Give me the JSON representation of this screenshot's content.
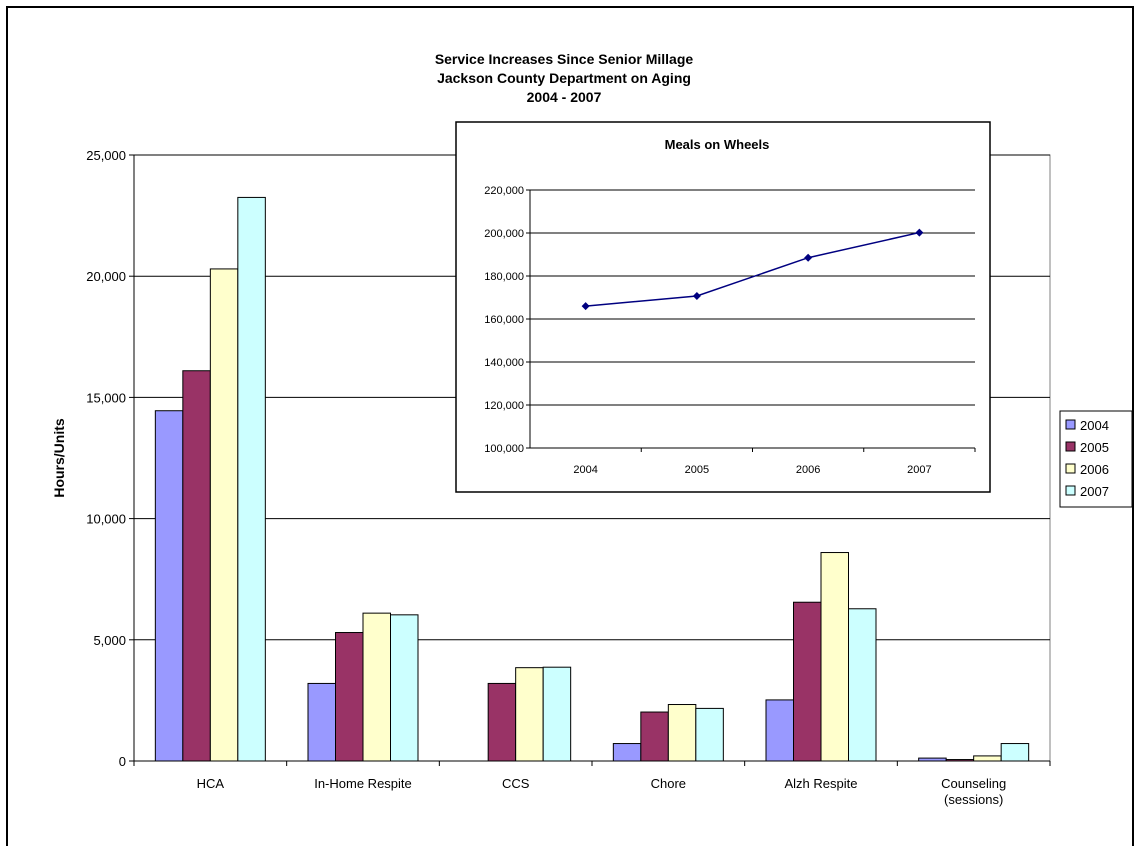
{
  "chart_data": [
    {
      "type": "bar",
      "title": [
        "Service Increases Since Senior Millage",
        "Jackson County Department on Aging",
        "2004 - 2007"
      ],
      "ylabel": "Hours/Units",
      "xlabel": "",
      "ylim": [
        0,
        25000
      ],
      "yticks": [
        "0",
        "5,000",
        "10,000",
        "15,000",
        "20,000",
        "25,000"
      ],
      "categories": [
        [
          "HCA"
        ],
        [
          "In-Home Respite"
        ],
        [
          "CCS"
        ],
        [
          "Chore"
        ],
        [
          "Alzh Respite"
        ],
        [
          "Counseling",
          "(sessions)"
        ]
      ],
      "series": [
        {
          "name": "2004",
          "color": "#9999ff",
          "values": [
            14450,
            3200,
            0,
            720,
            2520,
            120
          ]
        },
        {
          "name": "2005",
          "color": "#993366",
          "values": [
            16100,
            5300,
            3200,
            2020,
            6550,
            60
          ]
        },
        {
          "name": "2006",
          "color": "#ffffcc",
          "values": [
            20300,
            6100,
            3850,
            2330,
            8600,
            210
          ]
        },
        {
          "name": "2007",
          "color": "#ccffff",
          "values": [
            23250,
            6030,
            3870,
            2170,
            6280,
            720
          ]
        }
      ],
      "grid": true,
      "legend": "right"
    },
    {
      "type": "line",
      "title": "Meals on Wheels",
      "x": [
        "2004",
        "2005",
        "2006",
        "2007"
      ],
      "series": [
        {
          "color": "#000080",
          "values": [
            166000,
            170700,
            188500,
            200200
          ]
        }
      ],
      "ylim": [
        100000,
        220000
      ],
      "yticks": [
        "100,000",
        "120,000",
        "140,000",
        "160,000",
        "180,000",
        "200,000",
        "220,000"
      ],
      "grid": true
    }
  ]
}
